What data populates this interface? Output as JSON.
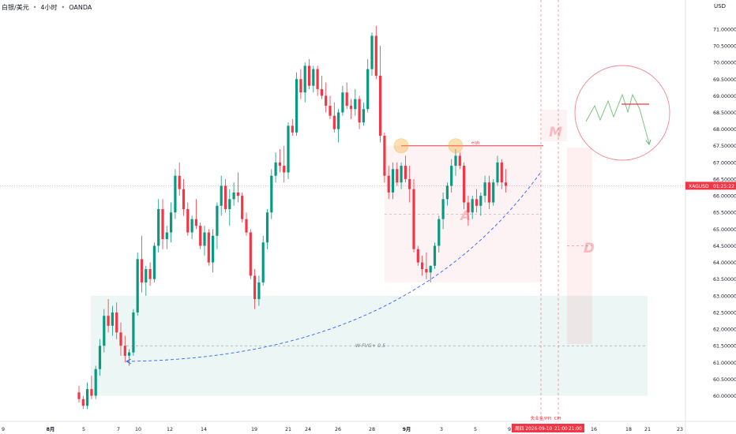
{
  "header": {
    "symbol": "白银/美元",
    "interval": "4小时",
    "source": "OANDA",
    "currency": "USD"
  },
  "colors": {
    "up": "#089981",
    "down": "#f23645",
    "zone_red": "#f23645",
    "zone_green": "#089981",
    "curve": "#2962ff"
  },
  "chart_data": {
    "type": "candlestick",
    "ylim": [
      59.8,
      71.4
    ],
    "yticks": [
      "71.00000",
      "70.50000",
      "70.00000",
      "69.50000",
      "69.00000",
      "68.50000",
      "68.00000",
      "67.50000",
      "67.00000",
      "66.50000",
      "66.00000",
      "65.50000",
      "65.00000",
      "64.50000",
      "64.00000",
      "63.50000",
      "63.00000",
      "62.50000",
      "62.00000",
      "61.50000",
      "61.00000",
      "60.50000",
      "60.00000"
    ],
    "xticks": [
      {
        "label": "8月",
        "bold": true
      },
      {
        "label": "5"
      },
      {
        "label": "7"
      },
      {
        "label": "10"
      },
      {
        "label": "12"
      },
      {
        "label": "14"
      },
      {
        "label": "19"
      },
      {
        "label": "21"
      },
      {
        "label": "24"
      },
      {
        "label": "26"
      },
      {
        "label": "28"
      },
      {
        "label": "9月",
        "bold": true
      },
      {
        "label": "3"
      },
      {
        "label": "5"
      },
      {
        "label": "9"
      },
      {
        "label": "16"
      },
      {
        "label": "18"
      },
      {
        "label": "21"
      },
      {
        "label": "23"
      }
    ],
    "last_price": {
      "symbol": "XAGUSD",
      "price": 66.3,
      "countdown": "01:25:22"
    },
    "eqh_level": 67.5,
    "eqh_label": "eqh",
    "fvg": {
      "label": "W-FVG+ 0.5",
      "top": 63.0,
      "bottom": 60.0,
      "mid": 61.5
    },
    "range_box": {
      "top": 67.5,
      "bottom": 63.4,
      "mid": 65.45
    },
    "projection_box": {
      "top": 67.45,
      "bottom": 61.55,
      "mid": 64.5
    },
    "labels": {
      "a": "A",
      "m": "M",
      "d": "D"
    },
    "events": [
      {
        "label": "失业金/PPI",
        "date": "周四 2026-09-10",
        "time": "21:00"
      },
      {
        "label": "CPI",
        "time": "21:00"
      }
    ],
    "candles": [
      [
        60.1,
        60.3,
        59.8,
        59.9
      ],
      [
        59.9,
        60.0,
        59.6,
        59.7
      ],
      [
        59.7,
        60.4,
        59.6,
        60.2
      ],
      [
        60.2,
        60.6,
        59.9,
        60.0
      ],
      [
        60.0,
        60.9,
        59.9,
        60.8
      ],
      [
        60.8,
        61.7,
        60.6,
        61.5
      ],
      [
        61.5,
        62.6,
        61.3,
        62.4
      ],
      [
        62.4,
        62.9,
        61.9,
        62.1
      ],
      [
        62.1,
        62.7,
        61.8,
        62.5
      ],
      [
        62.5,
        62.8,
        61.7,
        61.9
      ],
      [
        61.9,
        62.2,
        61.2,
        61.5
      ],
      [
        61.5,
        61.8,
        61.0,
        61.2
      ],
      [
        61.2,
        61.4,
        60.9,
        61.3
      ],
      [
        61.3,
        62.6,
        61.2,
        62.5
      ],
      [
        62.5,
        64.3,
        62.4,
        64.1
      ],
      [
        64.1,
        64.8,
        63.1,
        63.4
      ],
      [
        63.4,
        63.9,
        63.0,
        63.8
      ],
      [
        63.8,
        64.0,
        63.3,
        63.5
      ],
      [
        63.5,
        64.6,
        63.4,
        64.5
      ],
      [
        64.5,
        65.9,
        64.3,
        65.6
      ],
      [
        65.6,
        65.9,
        64.4,
        64.7
      ],
      [
        64.7,
        65.1,
        64.4,
        64.9
      ],
      [
        64.9,
        65.8,
        64.6,
        65.5
      ],
      [
        65.5,
        66.8,
        65.3,
        66.6
      ],
      [
        66.6,
        67.0,
        66.0,
        66.2
      ],
      [
        66.2,
        66.5,
        65.4,
        65.6
      ],
      [
        65.6,
        65.8,
        64.8,
        64.9
      ],
      [
        64.9,
        65.4,
        64.7,
        65.3
      ],
      [
        65.3,
        65.9,
        65.0,
        65.1
      ],
      [
        65.1,
        65.2,
        64.4,
        64.5
      ],
      [
        64.5,
        65.1,
        64.2,
        64.9
      ],
      [
        64.9,
        65.0,
        63.9,
        64.0
      ],
      [
        64.0,
        65.0,
        63.7,
        64.8
      ],
      [
        64.8,
        65.8,
        64.4,
        65.7
      ],
      [
        65.7,
        66.6,
        65.4,
        66.3
      ],
      [
        66.3,
        66.5,
        65.5,
        65.6
      ],
      [
        65.6,
        66.2,
        65.1,
        65.9
      ],
      [
        65.9,
        66.4,
        65.7,
        66.1
      ],
      [
        66.1,
        66.7,
        65.8,
        66.0
      ],
      [
        66.0,
        66.1,
        65.2,
        65.3
      ],
      [
        65.3,
        65.5,
        64.8,
        64.9
      ],
      [
        64.9,
        65.0,
        63.5,
        63.6
      ],
      [
        63.6,
        63.8,
        62.6,
        62.9
      ],
      [
        62.9,
        63.6,
        62.7,
        63.4
      ],
      [
        63.4,
        64.8,
        63.3,
        64.6
      ],
      [
        64.6,
        65.6,
        64.4,
        65.5
      ],
      [
        65.5,
        66.8,
        65.3,
        66.6
      ],
      [
        66.6,
        67.3,
        66.4,
        67.0
      ],
      [
        67.0,
        67.4,
        66.7,
        66.9
      ],
      [
        66.9,
        67.5,
        66.4,
        66.7
      ],
      [
        66.7,
        68.2,
        66.5,
        68.1
      ],
      [
        68.1,
        68.3,
        67.8,
        67.9
      ],
      [
        67.9,
        69.7,
        67.8,
        69.5
      ],
      [
        69.5,
        69.8,
        68.9,
        69.1
      ],
      [
        69.1,
        70.0,
        68.8,
        69.9
      ],
      [
        69.9,
        70.1,
        69.2,
        69.3
      ],
      [
        69.3,
        69.9,
        69.1,
        69.8
      ],
      [
        69.8,
        69.9,
        69.0,
        69.2
      ],
      [
        69.2,
        69.6,
        68.9,
        69.0
      ],
      [
        69.0,
        69.4,
        68.5,
        68.7
      ],
      [
        68.7,
        69.0,
        68.3,
        68.4
      ],
      [
        68.4,
        68.8,
        67.9,
        68.0
      ],
      [
        68.0,
        68.6,
        67.6,
        68.5
      ],
      [
        68.5,
        69.3,
        68.4,
        69.1
      ],
      [
        69.1,
        69.4,
        68.6,
        68.7
      ],
      [
        68.7,
        68.9,
        68.3,
        68.6
      ],
      [
        68.6,
        69.2,
        68.4,
        68.9
      ],
      [
        68.9,
        69.0,
        68.0,
        68.2
      ],
      [
        68.2,
        68.8,
        68.1,
        68.6
      ],
      [
        68.6,
        70.1,
        68.5,
        69.8
      ],
      [
        69.8,
        70.9,
        69.6,
        70.8
      ],
      [
        70.8,
        71.1,
        69.5,
        69.6
      ],
      [
        69.6,
        70.5,
        67.6,
        67.8
      ],
      [
        67.8,
        67.9,
        66.4,
        66.6
      ],
      [
        66.6,
        66.9,
        65.9,
        66.1
      ],
      [
        66.1,
        67.0,
        65.9,
        66.8
      ],
      [
        66.8,
        67.0,
        66.3,
        66.4
      ],
      [
        66.4,
        67.0,
        66.2,
        66.9
      ],
      [
        66.9,
        67.2,
        66.4,
        66.5
      ],
      [
        66.5,
        66.9,
        65.8,
        66.2
      ],
      [
        66.2,
        66.5,
        64.3,
        64.4
      ],
      [
        64.4,
        64.5,
        63.9,
        64.0
      ],
      [
        64.0,
        64.2,
        63.6,
        63.8
      ],
      [
        63.8,
        64.3,
        63.5,
        63.7
      ],
      [
        63.7,
        63.9,
        63.4,
        63.9
      ],
      [
        63.9,
        64.6,
        63.8,
        64.5
      ],
      [
        64.5,
        65.4,
        64.3,
        65.3
      ],
      [
        65.3,
        66.1,
        65.0,
        65.9
      ],
      [
        65.9,
        66.4,
        65.7,
        66.3
      ],
      [
        66.3,
        67.1,
        66.1,
        66.9
      ],
      [
        66.9,
        67.4,
        66.6,
        67.2
      ],
      [
        67.2,
        67.3,
        66.8,
        66.9
      ],
      [
        66.9,
        67.0,
        65.6,
        65.8
      ],
      [
        65.8,
        66.0,
        65.1,
        65.5
      ],
      [
        65.5,
        66.0,
        65.3,
        65.9
      ],
      [
        65.9,
        66.2,
        65.5,
        65.7
      ],
      [
        65.7,
        66.1,
        65.4,
        66.0
      ],
      [
        66.0,
        66.6,
        65.8,
        66.4
      ],
      [
        66.4,
        66.6,
        65.6,
        65.8
      ],
      [
        65.8,
        66.5,
        65.7,
        66.4
      ],
      [
        66.4,
        67.2,
        66.3,
        67.0
      ],
      [
        67.0,
        67.1,
        66.2,
        66.4
      ],
      [
        66.4,
        66.8,
        66.1,
        66.3
      ]
    ]
  }
}
